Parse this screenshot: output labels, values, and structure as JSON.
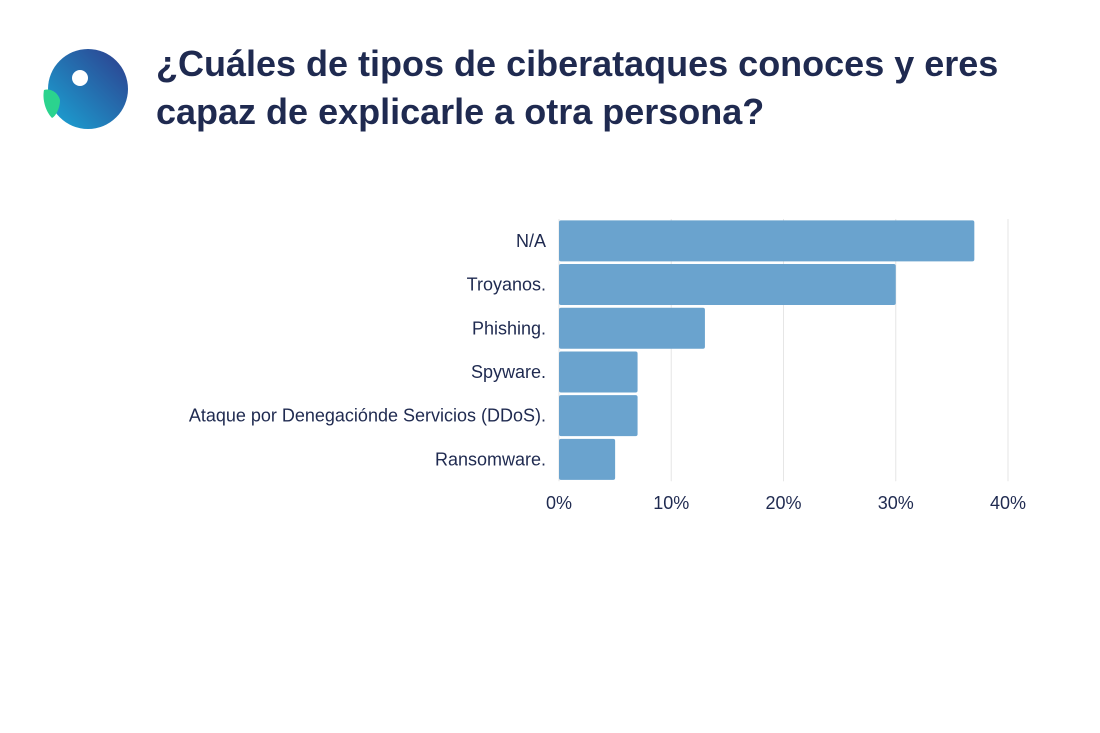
{
  "header": {
    "title": "¿Cuáles de tipos de ciberataques conoces y eres capaz de explicarle a otra persona?",
    "logo_icon": "brand-logo-icon"
  },
  "colors": {
    "bar": "#6aa3ce",
    "grid": "#e6e6e6",
    "text": "#1f2a50",
    "logo_gradient": [
      "#2bd38e",
      "#1aa7d6",
      "#2e3c8c"
    ]
  },
  "chart_data": {
    "type": "bar",
    "orientation": "horizontal",
    "categories": [
      "N/A",
      "Troyanos.",
      "Phishing.",
      "Spyware.",
      "Ataque por Denegaciónde Servicios (DDoS).",
      "Ransomware."
    ],
    "values": [
      37,
      30,
      13,
      7,
      7,
      5
    ],
    "unit": "%",
    "xlim": [
      0,
      40
    ],
    "x_ticks": [
      "0%",
      "10%",
      "20%",
      "30%",
      "40%"
    ],
    "grid": true
  }
}
